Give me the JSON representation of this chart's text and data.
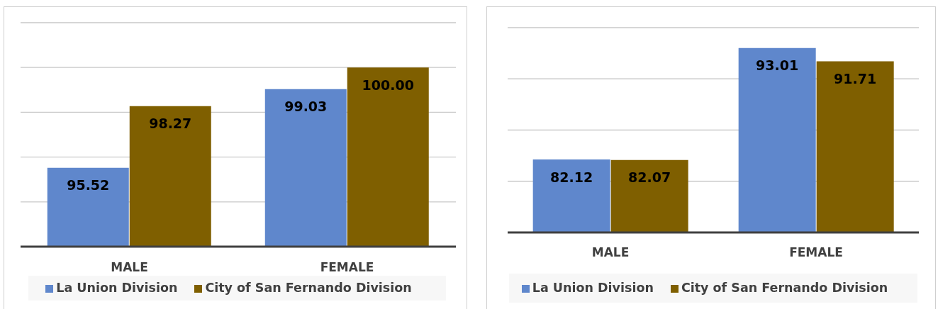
{
  "chart_data": [
    {
      "type": "bar",
      "categories": [
        "MALE",
        "FEMALE"
      ],
      "series": [
        {
          "name": "La Union Division",
          "color": "#5f87cc",
          "values": [
            95.52,
            99.03
          ],
          "value_labels": [
            "95.52",
            "99.03"
          ]
        },
        {
          "name": "City of San Fernando Division",
          "color": "#7f5f00",
          "values": [
            98.27,
            100
          ],
          "value_labels": [
            "98.27",
            "100.00"
          ]
        }
      ],
      "ylim": [
        92,
        102
      ],
      "yticks": [
        {
          "value": 92,
          "label": null
        },
        {
          "value": 94,
          "label": null
        },
        {
          "value": 96,
          "label": null
        },
        {
          "value": 98,
          "label": null
        },
        {
          "value": 100,
          "label": null
        },
        {
          "value": 102,
          "label": null
        }
      ],
      "tick_labels": "x",
      "grid": "y",
      "legend": "bottom"
    },
    {
      "type": "bar",
      "categories": [
        "MALE",
        "FEMALE"
      ],
      "series": [
        {
          "name": "La Union Division",
          "color": "#5f87cc",
          "values": [
            82.12,
            93.01
          ],
          "value_labels": [
            "82.12",
            "93.01"
          ]
        },
        {
          "name": "City of San Fernando Division",
          "color": "#7f5f00",
          "values": [
            82.07,
            91.71
          ],
          "value_labels": [
            "82.07",
            "91.71"
          ]
        }
      ],
      "ylim": [
        75,
        95
      ],
      "yticks": [
        {
          "value": 75,
          "label": null
        },
        {
          "value": 80,
          "label": null
        },
        {
          "value": 85,
          "label": null
        },
        {
          "value": 90,
          "label": null
        },
        {
          "value": 95,
          "label": null
        }
      ],
      "tick_labels": "x",
      "grid": "y",
      "legend": "bottom"
    }
  ]
}
